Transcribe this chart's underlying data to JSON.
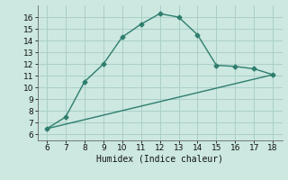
{
  "title": "",
  "xlabel": "Humidex (Indice chaleur)",
  "ylabel": "",
  "bg_color": "#cce8e0",
  "grid_color": "#aacfc8",
  "line_color": "#2e7d6e",
  "curve1_x": [
    6,
    7,
    8,
    9,
    10,
    11,
    12,
    13,
    14,
    15,
    16,
    17,
    18
  ],
  "curve1_y": [
    6.5,
    7.5,
    10.5,
    12.0,
    14.3,
    15.4,
    16.3,
    16.0,
    14.5,
    11.9,
    11.8,
    11.6,
    11.1
  ],
  "curve2_x": [
    6,
    18
  ],
  "curve2_y": [
    6.5,
    11.1
  ],
  "xlim": [
    5.5,
    18.5
  ],
  "ylim": [
    5.5,
    17.0
  ],
  "xticks": [
    6,
    7,
    8,
    9,
    10,
    11,
    12,
    13,
    14,
    15,
    16,
    17,
    18
  ],
  "yticks": [
    6,
    7,
    8,
    9,
    10,
    11,
    12,
    13,
    14,
    15,
    16
  ],
  "marker": "D",
  "markersize": 2.5,
  "linewidth": 1.0
}
